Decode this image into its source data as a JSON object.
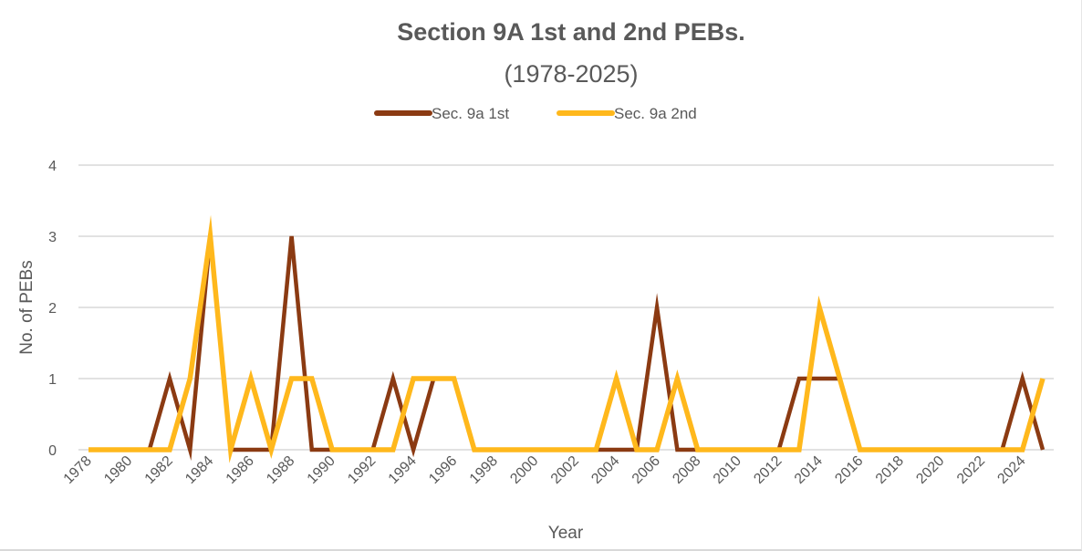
{
  "chart_data": {
    "type": "line",
    "title": "Section 9A 1st and 2nd PEBs.",
    "subtitle": "(1978-2025)",
    "xlabel": "Year",
    "ylabel": "No. of PEBs",
    "ylim": [
      0,
      4
    ],
    "y_ticks": [
      "0",
      "1",
      "2",
      "3",
      "4"
    ],
    "grid": "horizontal",
    "legend_position": "top",
    "x": [
      1978,
      1979,
      1980,
      1981,
      1982,
      1983,
      1984,
      1985,
      1986,
      1987,
      1988,
      1989,
      1990,
      1991,
      1992,
      1993,
      1994,
      1995,
      1996,
      1997,
      1998,
      1999,
      2000,
      2001,
      2002,
      2003,
      2004,
      2005,
      2006,
      2007,
      2008,
      2009,
      2010,
      2011,
      2012,
      2013,
      2014,
      2015,
      2016,
      2017,
      2018,
      2019,
      2020,
      2021,
      2022,
      2023,
      2024,
      2025
    ],
    "x_tick_labels": [
      "1978",
      "1980",
      "1982",
      "1984",
      "1986",
      "1988",
      "1990",
      "1992",
      "1994",
      "1996",
      "1998",
      "2000",
      "2002",
      "2004",
      "2006",
      "2008",
      "2010",
      "2012",
      "2014",
      "2016",
      "2018",
      "2020",
      "2022",
      "2024"
    ],
    "series": [
      {
        "name": "Sec. 9a 1st",
        "color": "#8B3A12",
        "values": [
          0,
          0,
          0,
          0,
          1,
          0,
          3,
          0,
          0,
          0,
          3,
          0,
          0,
          0,
          0,
          1,
          0,
          1,
          1,
          0,
          0,
          0,
          0,
          0,
          0,
          0,
          0,
          0,
          2,
          0,
          0,
          0,
          0,
          0,
          0,
          1,
          1,
          1,
          0,
          0,
          0,
          0,
          0,
          0,
          0,
          0,
          1,
          0
        ]
      },
      {
        "name": "Sec. 9a 2nd",
        "color": "#FFB81C",
        "values": [
          0,
          0,
          0,
          0,
          0,
          1,
          3,
          0,
          1,
          0,
          1,
          1,
          0,
          0,
          0,
          0,
          1,
          1,
          1,
          0,
          0,
          0,
          0,
          0,
          0,
          0,
          1,
          0,
          0,
          1,
          0,
          0,
          0,
          0,
          0,
          0,
          2,
          1,
          0,
          0,
          0,
          0,
          0,
          0,
          0,
          0,
          0,
          1
        ]
      }
    ]
  }
}
